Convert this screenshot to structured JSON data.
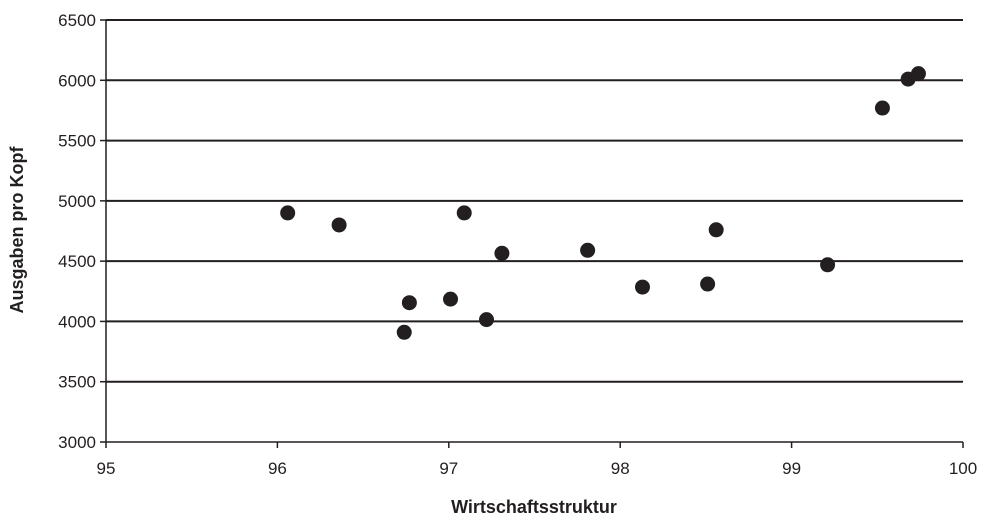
{
  "chart_data": {
    "type": "scatter",
    "title": "",
    "xlabel": "Wirtschaftsstruktur",
    "ylabel": "Ausgaben pro Kopf",
    "xlim": [
      95,
      100
    ],
    "ylim": [
      3000,
      6500
    ],
    "x_ticks": [
      "95",
      "96",
      "97",
      "98",
      "99",
      "100"
    ],
    "y_ticks": [
      "3000",
      "3500",
      "4000",
      "4500",
      "5000",
      "5500",
      "6000",
      "6500"
    ],
    "grid": "horizontal",
    "legend": "none",
    "colors": {
      "marker": "#231f20",
      "grid": "#231f20",
      "axis": "#231f20"
    },
    "series": [
      {
        "points": [
          {
            "x": 96.06,
            "y": 4900
          },
          {
            "x": 96.36,
            "y": 4800
          },
          {
            "x": 96.74,
            "y": 3910
          },
          {
            "x": 96.77,
            "y": 4155
          },
          {
            "x": 97.01,
            "y": 4185
          },
          {
            "x": 97.09,
            "y": 4900
          },
          {
            "x": 97.22,
            "y": 4015
          },
          {
            "x": 97.31,
            "y": 4565
          },
          {
            "x": 97.81,
            "y": 4590
          },
          {
            "x": 98.13,
            "y": 4285
          },
          {
            "x": 98.51,
            "y": 4310
          },
          {
            "x": 98.56,
            "y": 4760
          },
          {
            "x": 99.21,
            "y": 4470
          },
          {
            "x": 99.53,
            "y": 5770
          },
          {
            "x": 99.68,
            "y": 6010
          },
          {
            "x": 99.74,
            "y": 6055
          }
        ]
      }
    ]
  }
}
